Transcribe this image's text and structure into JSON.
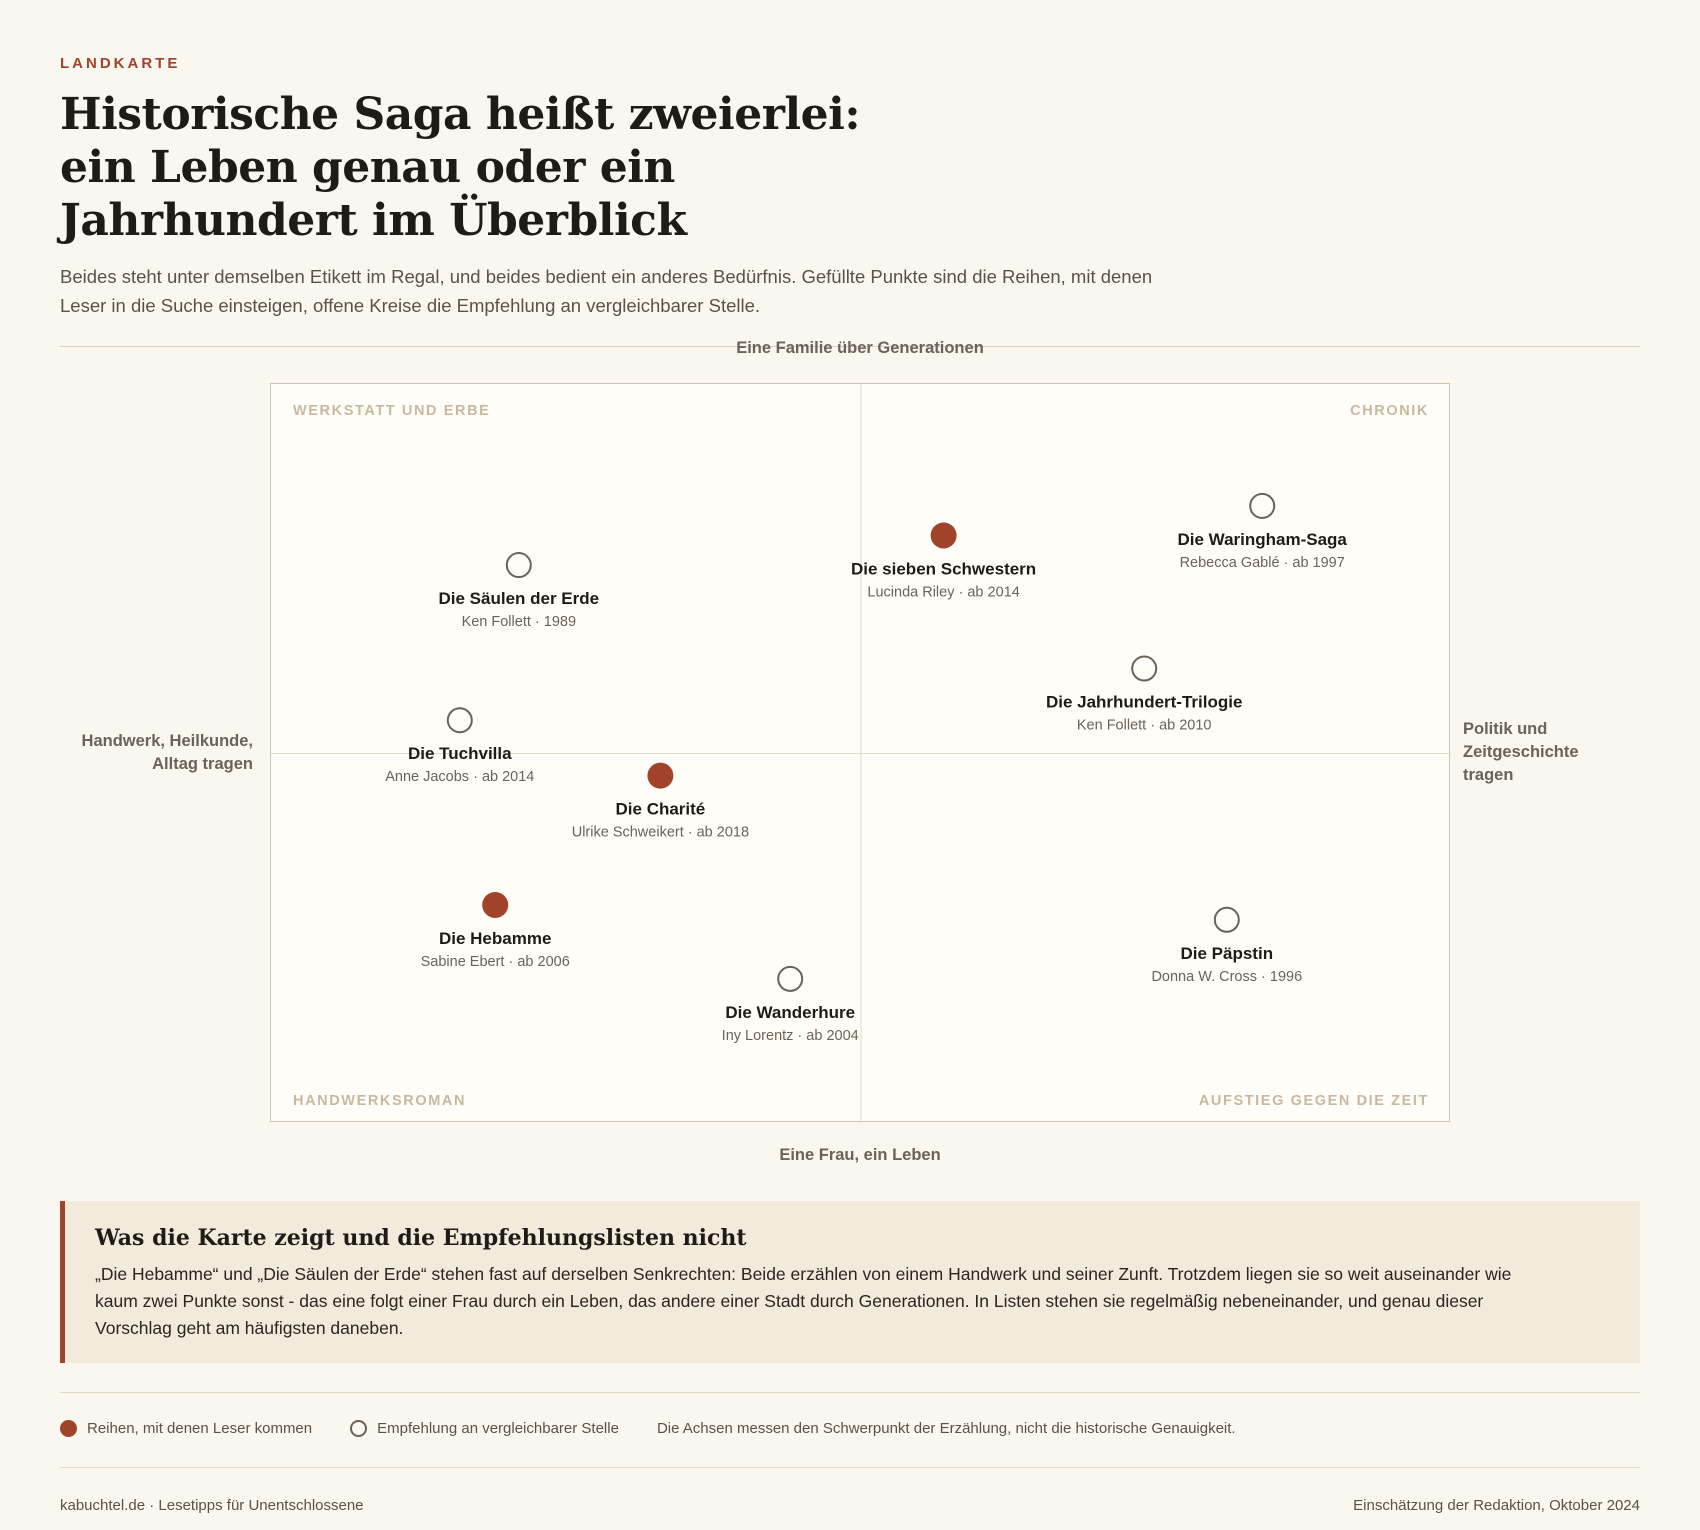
{
  "kicker": "LANDKARTE",
  "title": "Historische Saga heißt zweierlei: ein Leben genau oder ein Jahrhundert im Überblick",
  "lede": "Beides steht unter demselben Etikett im Regal, und beides bedient ein anderes Bedürfnis. Gefüllte Punkte sind die Reihen, mit denen Leser in die Suche einsteigen, offene Kreise die Empfehlung an vergleichbarer Stelle.",
  "colors": {
    "accent": "#a0432a",
    "quadrant_label": "#c7b9a0",
    "open_stroke": "#6b6259"
  },
  "chart_data": {
    "type": "scatter",
    "x_axis": {
      "min_label": "Handwerk, Heilkunde, Alltag tragen",
      "max_label": "Politik und Zeitgeschichte tragen",
      "range": [
        -1,
        1
      ]
    },
    "y_axis": {
      "min_label": "Eine Frau, ein Leben",
      "max_label": "Eine Familie über Generationen",
      "range": [
        -1,
        1
      ]
    },
    "quadrants": {
      "top_left": "WERKSTATT UND ERBE",
      "top_right": "CHRONIK",
      "bottom_left": "HANDWERKSROMAN",
      "bottom_right": "AUFSTIEG GEGEN DIE ZEIT"
    },
    "grid": false,
    "points": [
      {
        "title": "Die Säulen der Erde",
        "meta": "Ken Follett · 1989",
        "x": -0.58,
        "y": 0.51,
        "filled": false
      },
      {
        "title": "Die sieben Schwestern",
        "meta": "Lucinda Riley · ab 2014",
        "x": 0.14,
        "y": 0.59,
        "filled": true
      },
      {
        "title": "Die Waringham-Saga",
        "meta": "Rebecca Gablé · ab 1997",
        "x": 0.68,
        "y": 0.67,
        "filled": false
      },
      {
        "title": "Die Jahrhundert-Trilogie",
        "meta": "Ken Follett · ab 2010",
        "x": 0.48,
        "y": 0.23,
        "filled": false
      },
      {
        "title": "Die Tuchvilla",
        "meta": "Anne Jacobs · ab 2014",
        "x": -0.68,
        "y": 0.09,
        "filled": false
      },
      {
        "title": "Die Charité",
        "meta": "Ulrike Schweikert · ab 2018",
        "x": -0.34,
        "y": -0.06,
        "filled": true
      },
      {
        "title": "Die Hebamme",
        "meta": "Sabine Ebert · ab 2006",
        "x": -0.62,
        "y": -0.41,
        "filled": true
      },
      {
        "title": "Die Wanderhure",
        "meta": "Iny Lorentz · ab 2004",
        "x": -0.12,
        "y": -0.61,
        "filled": false
      },
      {
        "title": "Die Päpstin",
        "meta": "Donna W. Cross · 1996",
        "x": 0.62,
        "y": -0.45,
        "filled": false
      }
    ]
  },
  "callout": {
    "heading": "Was die Karte zeigt und die Empfehlungslisten nicht",
    "body": "„Die Hebamme“ und „Die Säulen der Erde“ stehen fast auf derselben Senkrechten: Beide erzählen von einem Handwerk und seiner Zunft. Trotzdem liegen sie so weit auseinander wie kaum zwei Punkte sonst - das eine folgt einer Frau durch ein Leben, das andere einer Stadt durch Generationen. In Listen stehen sie regelmäßig nebeneinander, und genau dieser Vorschlag geht am häufigsten daneben."
  },
  "legend": {
    "filled": "Reihen, mit denen Leser kommen",
    "open": "Empfehlung an vergleichbarer Stelle",
    "note": "Die Achsen messen den Schwerpunkt der Erzählung, nicht die historische Genauigkeit."
  },
  "footer": {
    "left": "kabuchtel.de · Lesetipps für Unentschlossene",
    "right": "Einschätzung der Redaktion, Oktober 2024"
  }
}
